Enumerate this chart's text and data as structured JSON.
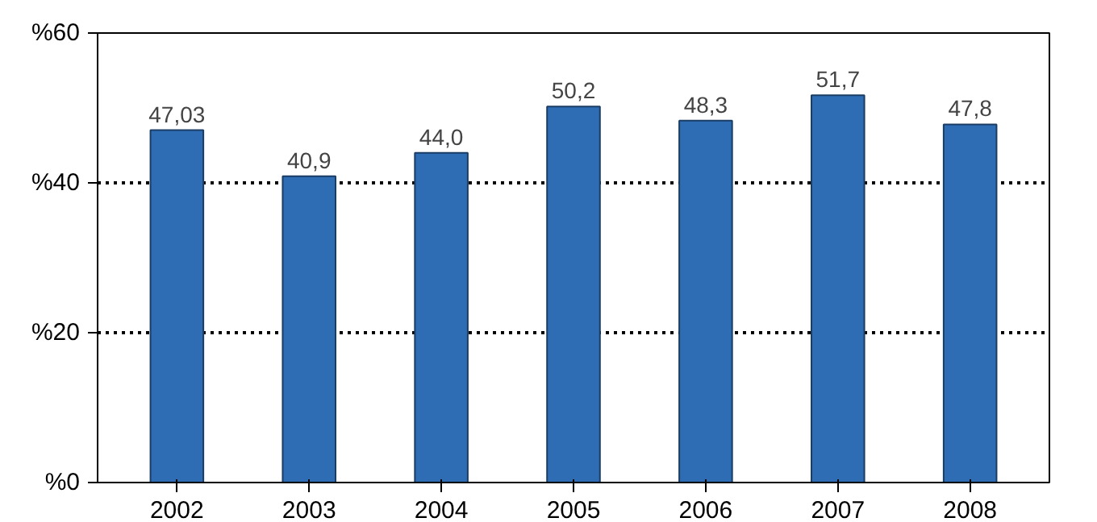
{
  "chart_data": {
    "type": "bar",
    "categories": [
      "2002",
      "2003",
      "2004",
      "2005",
      "2006",
      "2007",
      "2008"
    ],
    "values": [
      47.03,
      40.9,
      44.0,
      50.2,
      48.3,
      51.7,
      47.8
    ],
    "value_labels": [
      "47,03",
      "40,9",
      "44,0",
      "50,2",
      "48,3",
      "51,7",
      "47,8"
    ],
    "color": "#2e6db4",
    "ylim": [
      0,
      60
    ],
    "yticks": [
      {
        "value": 0,
        "label": "%0"
      },
      {
        "value": 20,
        "label": "%20"
      },
      {
        "value": 40,
        "label": "%40"
      },
      {
        "value": 60,
        "label": "%60"
      }
    ],
    "grid": "y"
  }
}
